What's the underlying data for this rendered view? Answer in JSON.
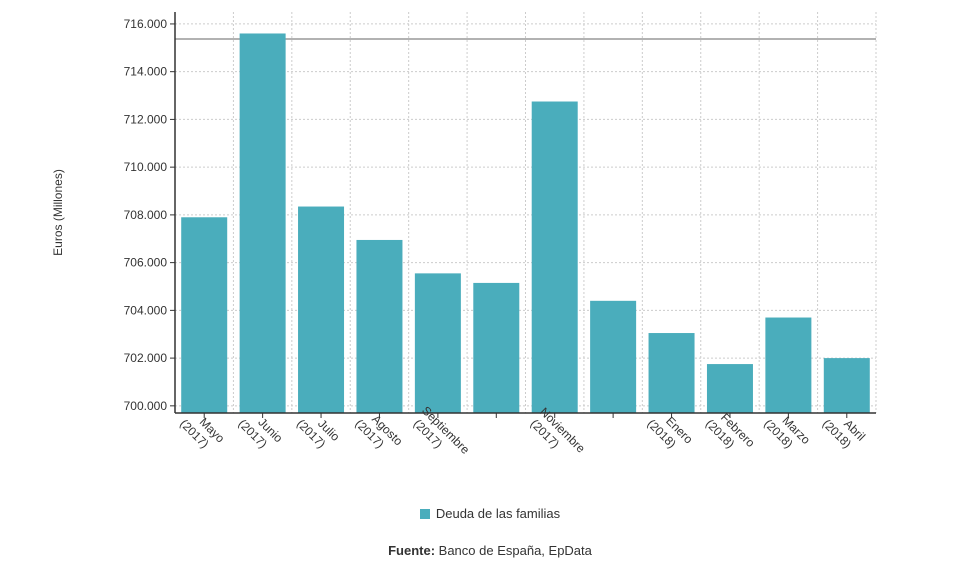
{
  "chart_data": {
    "type": "bar",
    "categories": [
      [
        "Mayo",
        "(2017)"
      ],
      [
        "Junio",
        "(2017)"
      ],
      [
        "Julio",
        "(2017)"
      ],
      [
        "Agosto",
        "(2017)"
      ],
      [
        "Septiembre",
        "(2017)"
      ],
      [
        "",
        ""
      ],
      [
        "Noviembre",
        "(2017)"
      ],
      [
        "",
        ""
      ],
      [
        "Enero",
        "(2018)"
      ],
      [
        "Febrero",
        "(2018)"
      ],
      [
        "Marzo",
        "(2018)"
      ],
      [
        "Abril",
        "(2018)"
      ]
    ],
    "series": [
      {
        "name": "Deuda de las familias",
        "values": [
          707900,
          715600,
          708350,
          706950,
          705550,
          705150,
          712750,
          704400,
          703050,
          701750,
          703700,
          702000
        ]
      }
    ],
    "yticks": [
      "700.000",
      "702.000",
      "704.000",
      "706.000",
      "708.000",
      "710.000",
      "712.000",
      "714.000",
      "716.000"
    ],
    "ytick_values": [
      700000,
      702000,
      704000,
      706000,
      708000,
      710000,
      712000,
      714000,
      716000
    ],
    "ylim": [
      699700,
      716500
    ],
    "ylabel": "Euros (Millones)",
    "xlabel": "",
    "grid": true,
    "legend_position": "bottom",
    "colors": {
      "bar": "#4AADBC",
      "grid": "#cccccc",
      "axis": "#333333",
      "topline": "#999999"
    }
  },
  "legend": {
    "label": "Deuda de las familias"
  },
  "source": {
    "prefix": "Fuente:",
    "text": " Banco de España, EpData"
  }
}
